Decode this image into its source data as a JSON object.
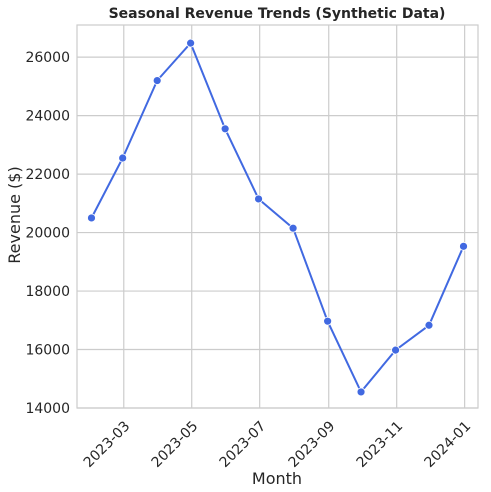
{
  "chart_data": {
    "type": "line",
    "title": "Seasonal Revenue Trends (Synthetic Data)",
    "xlabel": "Month",
    "ylabel": "Revenue ($)",
    "x": [
      "2023-01-31",
      "2023-02-28",
      "2023-03-31",
      "2023-04-30",
      "2023-05-31",
      "2023-06-30",
      "2023-07-31",
      "2023-08-31",
      "2023-09-30",
      "2023-10-31",
      "2023-11-30",
      "2023-12-31"
    ],
    "values": [
      20500,
      22550,
      25200,
      26480,
      23550,
      21150,
      20150,
      16970,
      14550,
      15980,
      16830,
      19530
    ],
    "xticks": [
      "2023-03",
      "2023-05",
      "2023-07",
      "2023-09",
      "2023-11",
      "2024-01"
    ],
    "yticks": [
      14000,
      16000,
      18000,
      20000,
      22000,
      24000,
      26000
    ],
    "ylim": [
      14000,
      27100
    ],
    "xlim": [
      "2023-01-18",
      "2024-01-13"
    ],
    "grid": true,
    "line_color": "#4169e1",
    "grid_color": "#cccccc",
    "spine_color": "#cccccc",
    "marker": "circle"
  }
}
